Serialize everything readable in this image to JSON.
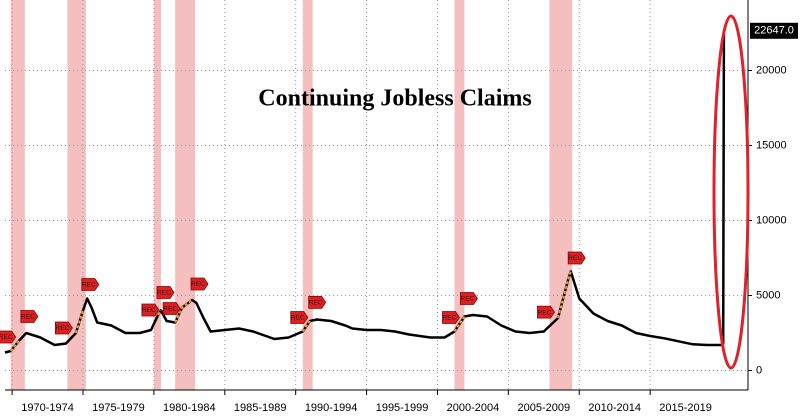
{
  "chart_data": {
    "type": "line",
    "title": "Continuing Jobless Claims",
    "x": [
      1969.5,
      1969.9,
      1970.5,
      1971,
      1972,
      1973,
      1973.8,
      1974.5,
      1975,
      1975.3,
      1975.6,
      1976,
      1977,
      1978,
      1979,
      1979.8,
      1980.3,
      1980.5,
      1980.9,
      1981.5,
      1982,
      1982.7,
      1983,
      1983.5,
      1984,
      1985,
      1986,
      1987,
      1988.5,
      1989.5,
      1990.5,
      1991,
      1991.5,
      1992.5,
      1993.5,
      1994,
      1995,
      1996,
      1997,
      1998,
      1999.5,
      2000.5,
      2001.2,
      2001.9,
      2002.5,
      2003.5,
      2004.5,
      2005.5,
      2006.5,
      2007.5,
      2008.5,
      2009.2,
      2009.4,
      2010,
      2011,
      2012,
      2013,
      2014,
      2015,
      2016,
      2017,
      2018,
      2019,
      2020.1,
      2020.15,
      2020.2
    ],
    "series": [
      {
        "color": "#000000",
        "highlight_color": "#f0a030",
        "values": [
          1200,
          1300,
          2000,
          2500,
          2200,
          1700,
          1800,
          2500,
          4000,
          4800,
          4200,
          3200,
          3000,
          2500,
          2500,
          2700,
          3700,
          4000,
          3300,
          3200,
          4200,
          4700,
          4500,
          3500,
          2600,
          2700,
          2800,
          2600,
          2100,
          2200,
          2600,
          3300,
          3400,
          3300,
          3000,
          2800,
          2700,
          2700,
          2600,
          2400,
          2200,
          2200,
          2600,
          3600,
          3700,
          3600,
          3000,
          2600,
          2500,
          2600,
          3500,
          6000,
          6600,
          4800,
          3800,
          3300,
          3000,
          2500,
          2300,
          2150,
          1950,
          1750,
          1700,
          1700,
          1800,
          22647
        ],
        "value_labels": [
          null,
          null,
          null,
          null,
          null,
          null,
          null,
          null,
          null,
          null,
          null,
          null,
          null,
          null,
          null,
          null,
          null,
          null,
          null,
          null,
          null,
          null,
          null,
          null,
          null,
          null,
          null,
          null,
          null,
          null,
          null,
          null,
          null,
          null,
          null,
          null,
          null,
          null,
          null,
          null,
          null,
          null,
          null,
          null,
          null,
          null,
          null,
          null,
          null,
          null,
          null,
          null,
          null,
          null,
          null,
          null,
          null,
          null,
          null,
          null,
          null,
          null,
          null,
          null,
          null,
          "22647.0"
        ]
      }
    ],
    "recessions": [
      [
        1969.9,
        1970.9
      ],
      [
        1973.9,
        1975.2
      ],
      [
        1980.0,
        1980.5
      ],
      [
        1981.5,
        1982.9
      ],
      [
        1990.5,
        1991.2
      ],
      [
        2001.2,
        2001.9
      ],
      [
        2007.9,
        2009.5
      ]
    ],
    "recession_color": "#f4b4b4",
    "recession_label": "REC",
    "xlim": [
      1969.5,
      2021.9
    ],
    "xticks": [
      {
        "value": 1970,
        "label": "1970-1974"
      },
      {
        "value": 1975,
        "label": "1975-1979"
      },
      {
        "value": 1980,
        "label": "1980-1984"
      },
      {
        "value": 1985,
        "label": "1985-1989"
      },
      {
        "value": 1990,
        "label": "1990-1994"
      },
      {
        "value": 1995,
        "label": "1995-1999"
      },
      {
        "value": 2000,
        "label": "2000-2004"
      },
      {
        "value": 2005,
        "label": "2005-2009"
      },
      {
        "value": 2010,
        "label": "2010-2014"
      },
      {
        "value": 2015,
        "label": "2015-2019"
      }
    ],
    "ylim": [
      -1300,
      24700
    ],
    "yticks": [
      0,
      5000,
      10000,
      15000,
      20000
    ],
    "grid": true
  }
}
